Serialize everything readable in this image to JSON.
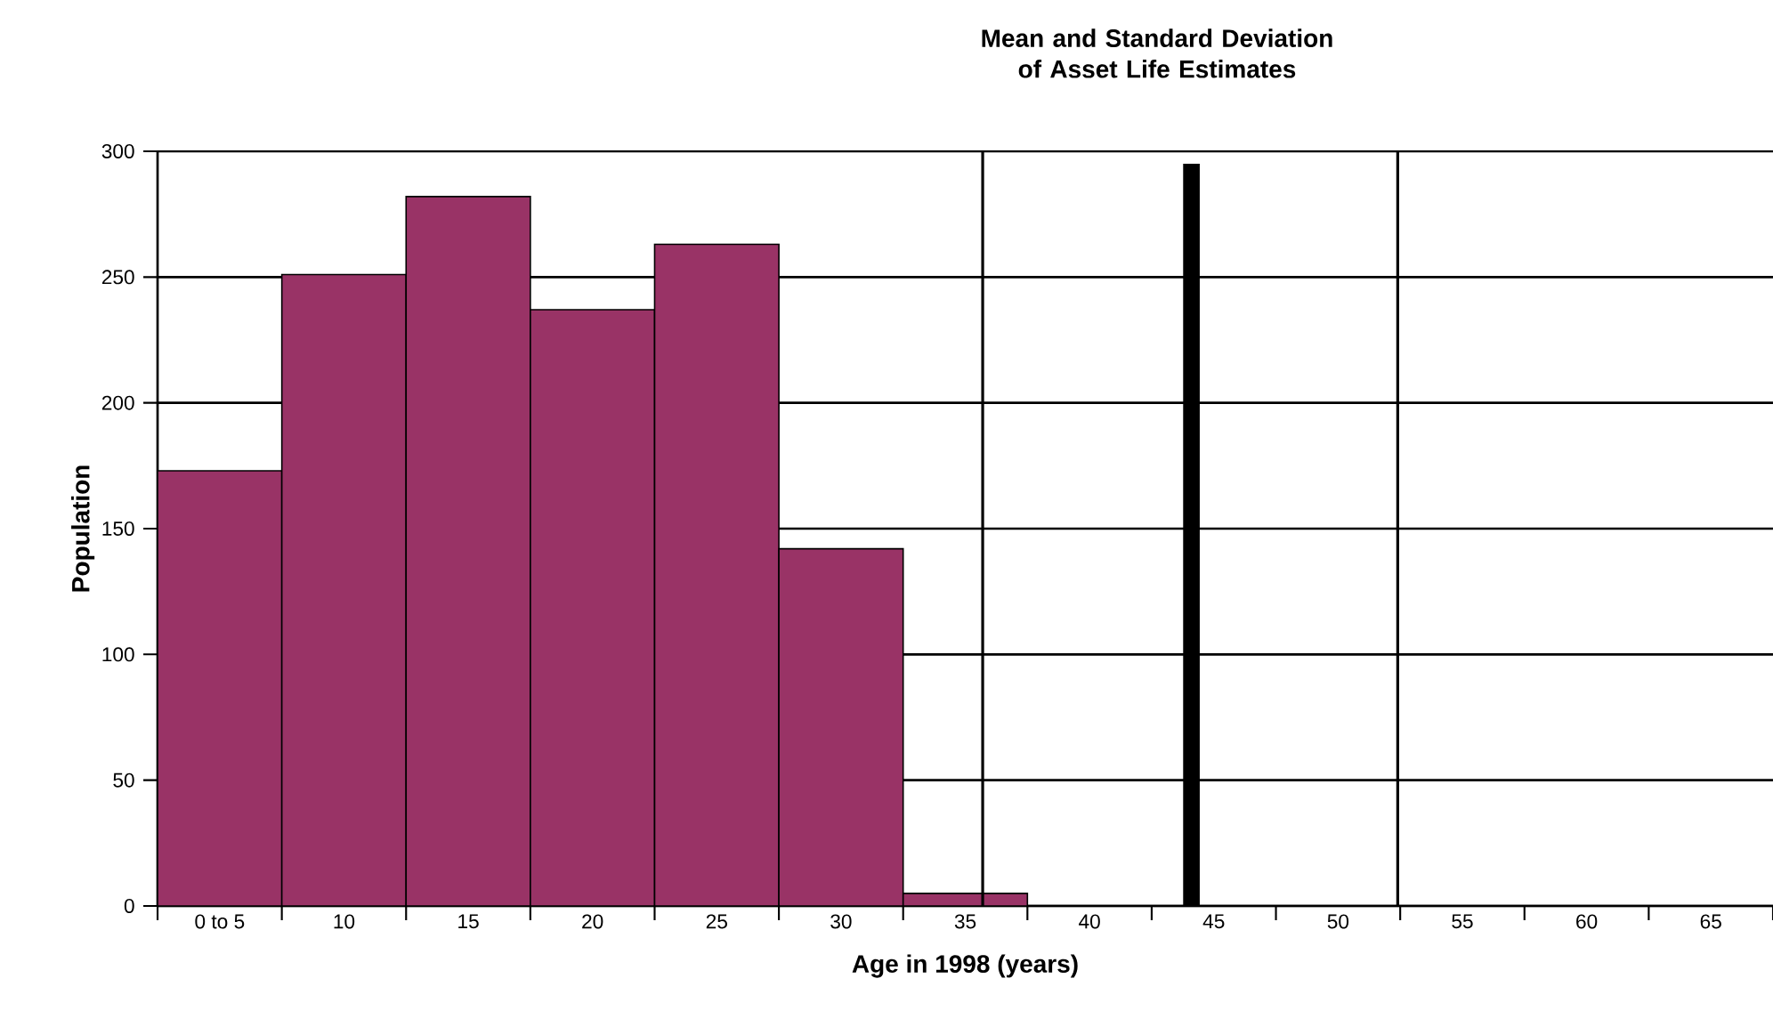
{
  "chart_data": {
    "type": "histogram",
    "title": "Mean and Standard Deviation of Asset Life Estimates",
    "xlabel": "Age in 1998 (years)",
    "ylabel": "Population",
    "bins": [
      2.5,
      7.5,
      12.5,
      17.5,
      22.5,
      27.5,
      32.5,
      37.5,
      42.5,
      47.5,
      52.5,
      57.5,
      62.5,
      67.5
    ],
    "values": [
      173,
      251,
      282,
      237,
      263,
      142,
      5,
      0,
      0,
      0,
      0,
      0,
      0
    ],
    "color": "#993366",
    "series": [
      {
        "type": "line",
        "x": [
          44.1,
          44.1
        ],
        "values": [
          0,
          295
        ],
        "color": "#000000"
      }
    ],
    "ref_lines": [
      {
        "axis": "x",
        "value": 35.7,
        "color": "#000000"
      },
      {
        "axis": "x",
        "value": 52.4,
        "color": "#000000"
      }
    ],
    "xlim": [
      2.5,
      67.5
    ],
    "ylim": [
      0,
      300
    ],
    "xticks": [
      {
        "value": 5,
        "label": "0 to 5"
      },
      10,
      15,
      20,
      25,
      30,
      35,
      40,
      45,
      50,
      55,
      60,
      65,
      {
        "value": 2.5,
        "label": null
      },
      {
        "value": 7.5,
        "label": null
      },
      {
        "value": 12.5,
        "label": null
      },
      {
        "value": 17.5,
        "label": null
      },
      {
        "value": 22.5,
        "label": null
      },
      {
        "value": 27.5,
        "label": null
      },
      {
        "value": 32.5,
        "label": null
      },
      {
        "value": 37.5,
        "label": null
      },
      {
        "value": 42.5,
        "label": null
      },
      {
        "value": 47.5,
        "label": null
      },
      {
        "value": 52.5,
        "label": null
      },
      {
        "value": 57.5,
        "label": null
      },
      {
        "value": 62.5,
        "label": null
      },
      {
        "value": 67.5,
        "label": null
      }
    ],
    "yticks": [
      0,
      50,
      100,
      150,
      200,
      250,
      300
    ],
    "grid": "y"
  }
}
